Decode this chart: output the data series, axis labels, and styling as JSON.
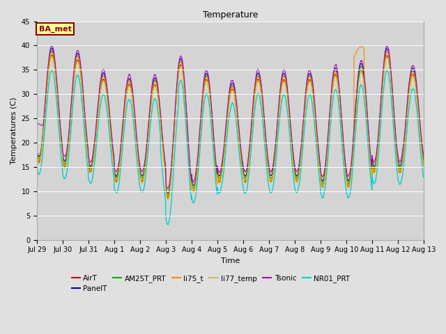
{
  "title": "Temperature",
  "xlabel": "Time",
  "ylabel": "Temperatures (C)",
  "ylim": [
    0,
    45
  ],
  "yticks": [
    0,
    5,
    10,
    15,
    20,
    25,
    30,
    35,
    40,
    45
  ],
  "fig_bg": "#e0e0e0",
  "plot_bg": "#d4d4d4",
  "annotation_text": "BA_met",
  "annotation_bg": "#ffff99",
  "annotation_border": "#8b0000",
  "series_order": [
    "AirT",
    "PanelT",
    "AM25T_PRT",
    "li75_t",
    "li77_temp",
    "Tsonic",
    "NR01_PRT"
  ],
  "series": {
    "AirT": {
      "color": "#cc0000",
      "lw": 0.8
    },
    "PanelT": {
      "color": "#0000bb",
      "lw": 0.8
    },
    "AM25T_PRT": {
      "color": "#00aa00",
      "lw": 0.8
    },
    "li75_t": {
      "color": "#ff8800",
      "lw": 0.9
    },
    "li77_temp": {
      "color": "#cccc00",
      "lw": 0.8
    },
    "Tsonic": {
      "color": "#aa00aa",
      "lw": 0.8
    },
    "NR01_PRT": {
      "color": "#00cccc",
      "lw": 1.0
    }
  },
  "x_tick_labels": [
    "Jul 29",
    "Jul 30",
    "Jul 31",
    "Aug 1",
    "Aug 2",
    "Aug 3",
    "Aug 4",
    "Aug 5",
    "Aug 6",
    "Aug 7",
    "Aug 8",
    "Aug 9",
    "Aug 10",
    "Aug 11",
    "Aug 12",
    "Aug 13"
  ],
  "num_days": 15,
  "legend_row1": [
    "AirT",
    "PanelT",
    "AM25T_PRT",
    "li75_t",
    "li77_temp",
    "Tsonic"
  ],
  "legend_row2": [
    "NR01_PRT"
  ]
}
